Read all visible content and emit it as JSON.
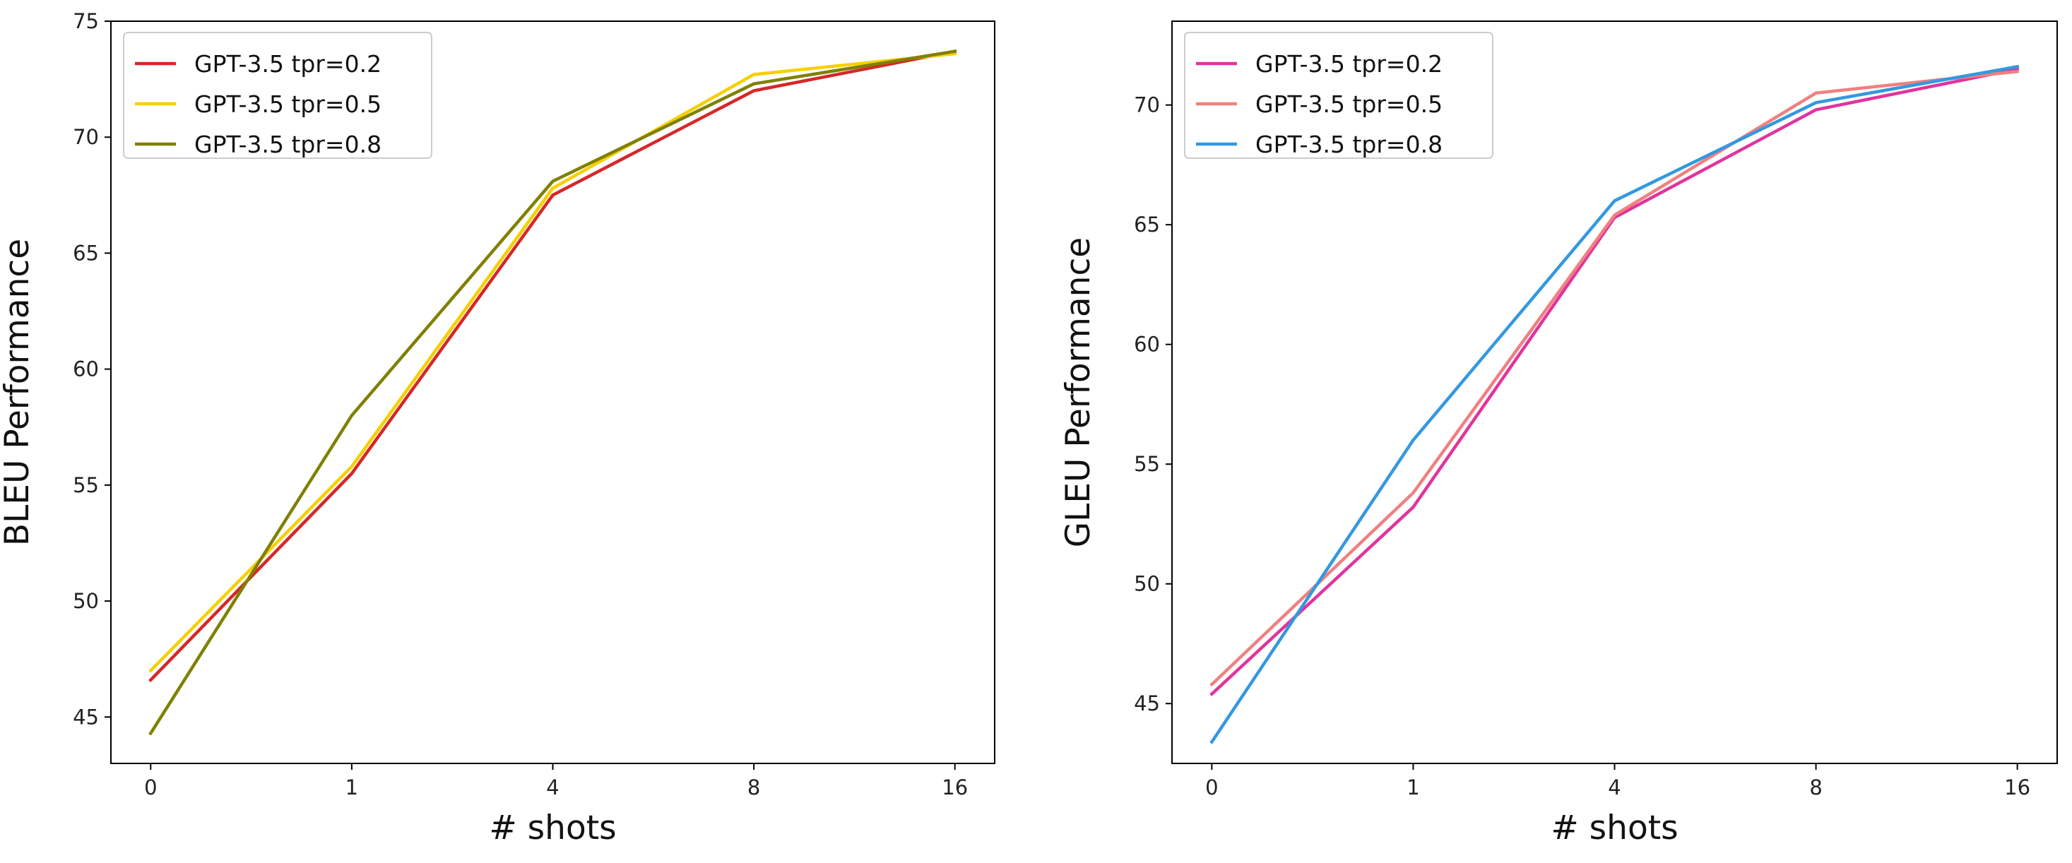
{
  "chart_data": [
    {
      "type": "line",
      "title": "",
      "xlabel": "# shots",
      "ylabel": "BLEU Performance",
      "categories": [
        "0",
        "1",
        "4",
        "8",
        "16"
      ],
      "yticks": [
        45,
        50,
        55,
        60,
        65,
        70,
        75
      ],
      "ylim": [
        43,
        75
      ],
      "grid": false,
      "legend_position": "top-left",
      "series": [
        {
          "name": "GPT-3.5 tpr=0.2",
          "color": "#d62728",
          "values": [
            46.6,
            55.5,
            67.5,
            72.0,
            73.7
          ]
        },
        {
          "name": "GPT-3.5 tpr=0.5",
          "color": "#f5d000",
          "values": [
            47.0,
            55.8,
            67.8,
            72.7,
            73.6
          ]
        },
        {
          "name": "GPT-3.5 tpr=0.8",
          "color": "#808000",
          "values": [
            44.3,
            58.0,
            68.1,
            72.3,
            73.7
          ]
        }
      ]
    },
    {
      "type": "line",
      "title": "",
      "xlabel": "# shots",
      "ylabel": "GLEU Performance",
      "categories": [
        "0",
        "1",
        "4",
        "8",
        "16"
      ],
      "yticks": [
        45,
        50,
        55,
        60,
        65,
        70
      ],
      "ylim": [
        42.5,
        73.5
      ],
      "grid": false,
      "legend_position": "top-left",
      "series": [
        {
          "name": "GPT-3.5 tpr=0.2",
          "color": "#e0349e",
          "values": [
            45.4,
            53.2,
            65.3,
            69.8,
            71.5
          ]
        },
        {
          "name": "GPT-3.5 tpr=0.5",
          "color": "#f08080",
          "values": [
            45.8,
            53.8,
            65.4,
            70.5,
            71.4
          ]
        },
        {
          "name": "GPT-3.5 tpr=0.8",
          "color": "#3498e0",
          "values": [
            43.4,
            56.0,
            66.0,
            70.1,
            71.6
          ]
        }
      ]
    }
  ]
}
